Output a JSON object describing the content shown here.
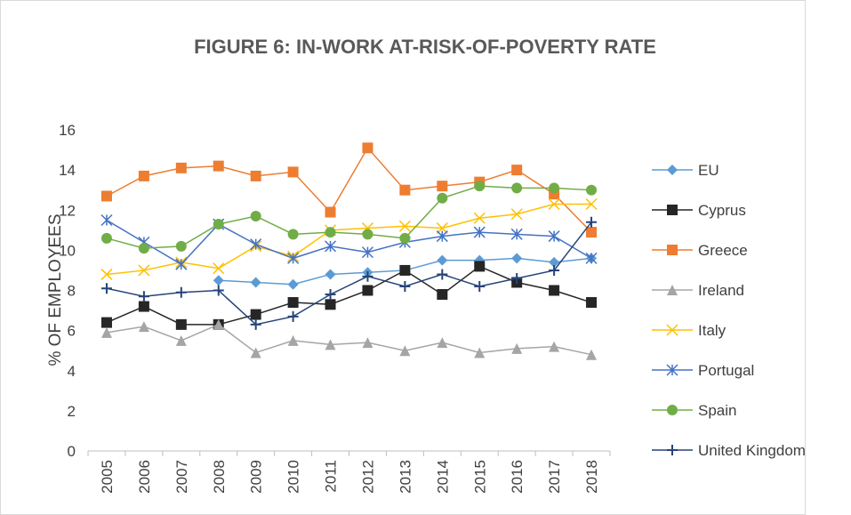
{
  "chart_data": {
    "type": "line",
    "title": "FIGURE 6: IN-WORK AT-RISK-OF-POVERTY RATE",
    "y_label": "% OF EMPLOYEES",
    "categories": [
      "2005",
      "2006",
      "2007",
      "2008",
      "2009",
      "2010",
      "2011",
      "2012",
      "2013",
      "2014",
      "2015",
      "2016",
      "2017",
      "2018"
    ],
    "series": [
      {
        "name": "EU",
        "color": "#5b9bd5",
        "marker": "diamond",
        "values": [
          null,
          null,
          null,
          8.5,
          8.4,
          8.3,
          8.8,
          8.9,
          9.0,
          9.5,
          9.5,
          9.6,
          9.4,
          9.6
        ]
      },
      {
        "name": "Cyprus",
        "color": "#262626",
        "marker": "square",
        "values": [
          6.4,
          7.2,
          6.3,
          6.3,
          6.8,
          7.4,
          7.3,
          8.0,
          9.0,
          7.8,
          9.2,
          8.4,
          8.0,
          7.4
        ]
      },
      {
        "name": "Greece",
        "color": "#ed7d31",
        "marker": "square",
        "values": [
          12.7,
          13.7,
          14.1,
          14.2,
          13.7,
          13.9,
          11.9,
          15.1,
          13.0,
          13.2,
          13.4,
          14.0,
          12.8,
          10.9
        ]
      },
      {
        "name": "Ireland",
        "color": "#a5a5a5",
        "marker": "triangle",
        "values": [
          5.9,
          6.2,
          5.5,
          6.3,
          4.9,
          5.5,
          5.3,
          5.4,
          5.0,
          5.4,
          4.9,
          5.1,
          5.2,
          4.8
        ]
      },
      {
        "name": "Italy",
        "color": "#ffc000",
        "marker": "x",
        "values": [
          8.8,
          9.0,
          9.4,
          9.1,
          10.2,
          9.7,
          11.0,
          11.1,
          11.2,
          11.1,
          11.6,
          11.8,
          12.3,
          12.3
        ]
      },
      {
        "name": "Portugal",
        "color": "#4472c4",
        "marker": "star",
        "values": [
          11.5,
          10.4,
          9.3,
          11.3,
          10.3,
          9.6,
          10.2,
          9.9,
          10.4,
          10.7,
          10.9,
          10.8,
          10.7,
          9.6
        ]
      },
      {
        "name": "Spain",
        "color": "#70ad47",
        "marker": "circle",
        "values": [
          10.6,
          10.1,
          10.2,
          11.3,
          11.7,
          10.8,
          10.9,
          10.8,
          10.6,
          12.6,
          13.2,
          13.1,
          13.1,
          13.0
        ]
      },
      {
        "name": "United Kingdom",
        "color": "#264478",
        "marker": "plus",
        "values": [
          8.1,
          7.7,
          7.9,
          8.0,
          6.3,
          6.7,
          7.8,
          8.7,
          8.2,
          8.8,
          8.2,
          8.6,
          9.0,
          11.4
        ]
      }
    ],
    "ylim": [
      0,
      16
    ],
    "yticks": [
      0,
      2,
      4,
      6,
      8,
      10,
      12,
      14,
      16
    ],
    "grid": false,
    "legend": "right"
  }
}
